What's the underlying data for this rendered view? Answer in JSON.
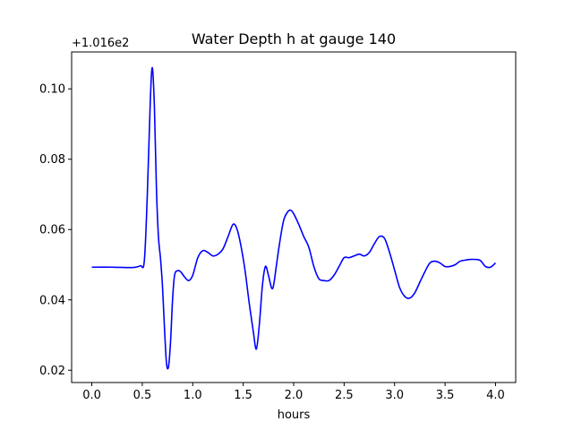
{
  "chart_data": {
    "type": "line",
    "title": "Water Depth h at gauge 140",
    "xlabel": "hours",
    "ylabel": "",
    "y_offset_label": "+1.016e2",
    "xlim": [
      -0.2,
      4.2
    ],
    "ylim": [
      0.0165,
      0.1105
    ],
    "x_ticks": [
      0.0,
      0.5,
      1.0,
      1.5,
      2.0,
      2.5,
      3.0,
      3.5,
      4.0
    ],
    "x_tick_labels": [
      "0.0",
      "0.5",
      "1.0",
      "1.5",
      "2.0",
      "2.5",
      "3.0",
      "3.5",
      "4.0"
    ],
    "y_ticks": [
      0.02,
      0.04,
      0.06,
      0.08,
      0.1
    ],
    "y_tick_labels": [
      "0.02",
      "0.04",
      "0.06",
      "0.08",
      "0.10"
    ],
    "grid": false,
    "legend": "none",
    "line_color": "#0000ff",
    "series": [
      {
        "x": [
          0.0,
          0.2,
          0.4,
          0.48,
          0.52,
          0.55,
          0.58,
          0.6,
          0.62,
          0.64,
          0.66,
          0.68,
          0.7,
          0.72,
          0.74,
          0.76,
          0.78,
          0.8,
          0.82,
          0.85,
          0.88,
          0.92,
          0.96,
          1.0,
          1.05,
          1.1,
          1.15,
          1.2,
          1.25,
          1.3,
          1.35,
          1.4,
          1.44,
          1.48,
          1.52,
          1.56,
          1.6,
          1.63,
          1.66,
          1.69,
          1.72,
          1.75,
          1.78,
          1.8,
          1.83,
          1.86,
          1.9,
          1.94,
          1.97,
          2.0,
          2.05,
          2.1,
          2.15,
          2.2,
          2.25,
          2.3,
          2.35,
          2.4,
          2.45,
          2.5,
          2.55,
          2.6,
          2.65,
          2.7,
          2.75,
          2.8,
          2.85,
          2.9,
          2.95,
          3.0,
          3.05,
          3.1,
          3.15,
          3.2,
          3.25,
          3.3,
          3.35,
          3.4,
          3.45,
          3.5,
          3.55,
          3.6,
          3.65,
          3.7,
          3.75,
          3.8,
          3.85,
          3.9,
          3.95,
          4.0
        ],
        "values": [
          0.0493,
          0.0493,
          0.0492,
          0.0497,
          0.051,
          0.07,
          0.097,
          0.106,
          0.095,
          0.072,
          0.058,
          0.052,
          0.044,
          0.032,
          0.022,
          0.021,
          0.028,
          0.04,
          0.047,
          0.0483,
          0.048,
          0.0465,
          0.0455,
          0.047,
          0.052,
          0.054,
          0.0535,
          0.0525,
          0.053,
          0.0545,
          0.058,
          0.0615,
          0.06,
          0.055,
          0.048,
          0.039,
          0.031,
          0.026,
          0.033,
          0.044,
          0.0495,
          0.047,
          0.0435,
          0.044,
          0.05,
          0.056,
          0.0625,
          0.065,
          0.0655,
          0.0645,
          0.0615,
          0.058,
          0.055,
          0.0495,
          0.046,
          0.0455,
          0.0455,
          0.047,
          0.0495,
          0.052,
          0.052,
          0.0525,
          0.053,
          0.0525,
          0.0535,
          0.056,
          0.058,
          0.0575,
          0.0535,
          0.0485,
          0.0435,
          0.041,
          0.0405,
          0.042,
          0.045,
          0.048,
          0.0505,
          0.051,
          0.0505,
          0.0495,
          0.0495,
          0.05,
          0.051,
          0.0513,
          0.0515,
          0.0515,
          0.0512,
          0.0495,
          0.0493,
          0.0505
        ]
      }
    ]
  }
}
